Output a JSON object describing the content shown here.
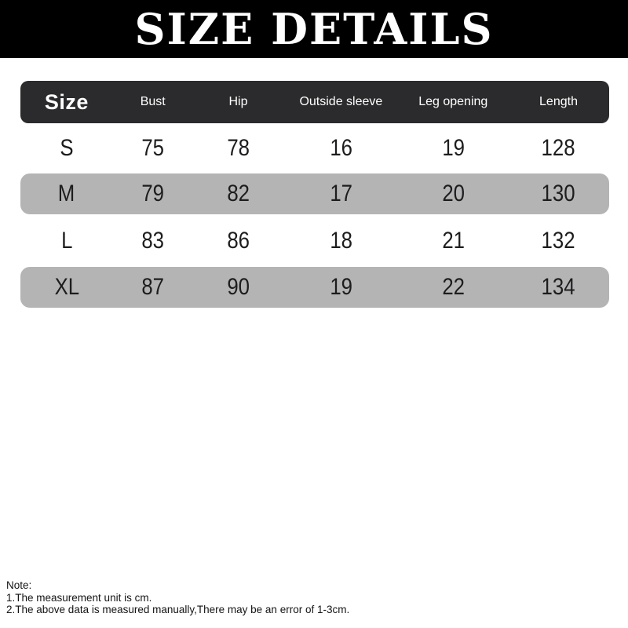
{
  "banner": {
    "title": "SIZE DETAILS"
  },
  "table": {
    "headers": [
      "Size",
      "Bust",
      "Hip",
      "Outside sleeve",
      "Leg opening",
      "Length"
    ],
    "rows": [
      {
        "cells": [
          "S",
          "75",
          "78",
          "16",
          "19",
          "128"
        ]
      },
      {
        "cells": [
          "M",
          "79",
          "82",
          "17",
          "20",
          "130"
        ]
      },
      {
        "cells": [
          "L",
          "83",
          "86",
          "18",
          "21",
          "132"
        ]
      },
      {
        "cells": [
          "XL",
          "87",
          "90",
          "19",
          "22",
          "134"
        ]
      }
    ]
  },
  "notes": {
    "label": "Note:",
    "items": [
      "1.The measurement unit is cm.",
      "2.The above data is measured manually,There may be an error of 1-3cm."
    ]
  },
  "colors": {
    "banner_bg": "#000000",
    "header_bg": "#2b2b2d",
    "shaded_row_bg": "#b4b4b4",
    "text_dark": "#1d1d1f",
    "text_light": "#ffffff"
  }
}
